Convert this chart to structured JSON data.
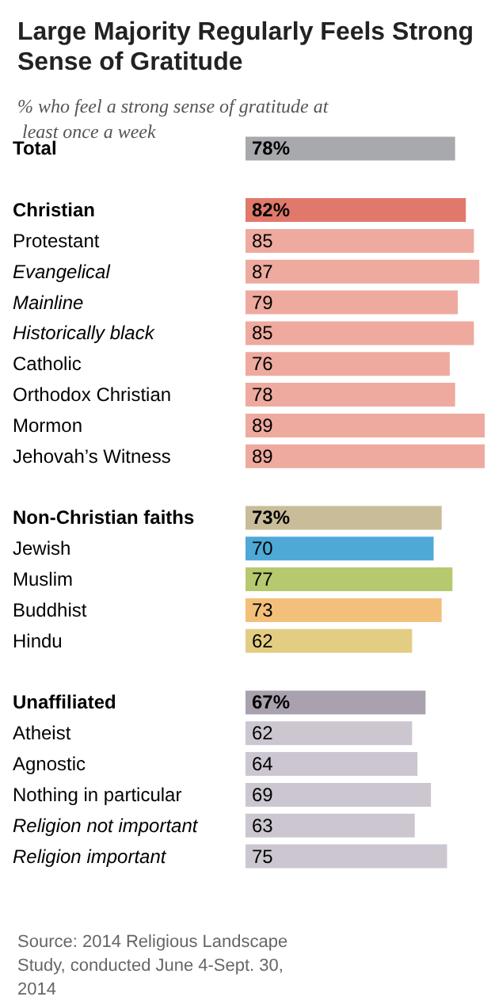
{
  "chart_data": {
    "type": "bar",
    "orientation": "horizontal",
    "title": "Large Majority Regularly Feels Strong Sense of Gratitude",
    "subtitle": "% who feel a strong sense of gratitude at least once a week",
    "categories": [
      "Total",
      null,
      "Christian",
      "Protestant",
      "Evangelical",
      "Mainline",
      "Historically black",
      "Catholic",
      "Orthodox Christian",
      "Mormon",
      "Jehovah’s Witness",
      null,
      "Non-Christian faiths",
      "Jewish",
      "Muslim",
      "Buddhist",
      "Hindu",
      null,
      "Unaffiliated",
      "Atheist",
      "Agnostic",
      "Nothing in particular",
      "Religion not important",
      "Religion important"
    ],
    "values": [
      78,
      null,
      82,
      85,
      87,
      79,
      85,
      76,
      78,
      89,
      89,
      null,
      73,
      70,
      77,
      73,
      62,
      null,
      67,
      62,
      64,
      69,
      63,
      75
    ],
    "value_labels": [
      "78%",
      null,
      "82%",
      "85",
      "87",
      "79",
      "85",
      "76",
      "78",
      "89",
      "89",
      null,
      "73%",
      "70",
      "77",
      "73",
      "62",
      null,
      "67%",
      "62",
      "64",
      "69",
      "63",
      "75"
    ],
    "colors": [
      "#a7a9ac",
      null,
      "#e0796b",
      "#eeaa9f",
      "#eeaa9f",
      "#eeaa9f",
      "#eeaa9f",
      "#eeaa9f",
      "#eeaa9f",
      "#eeaa9f",
      "#eeaa9f",
      null,
      "#c8bd98",
      "#4ea9d6",
      "#b6c96e",
      "#f3c07c",
      "#e3cd82",
      null,
      "#a9a1ae",
      "#cbc6cf",
      "#cbc6cf",
      "#cbc6cf",
      "#cbc6cf",
      "#cbc6cf"
    ],
    "annotations": [
      "Source: 2014 Religious Landscape Study, conducted June 4-Sept. 30, 2014"
    ]
  }
}
